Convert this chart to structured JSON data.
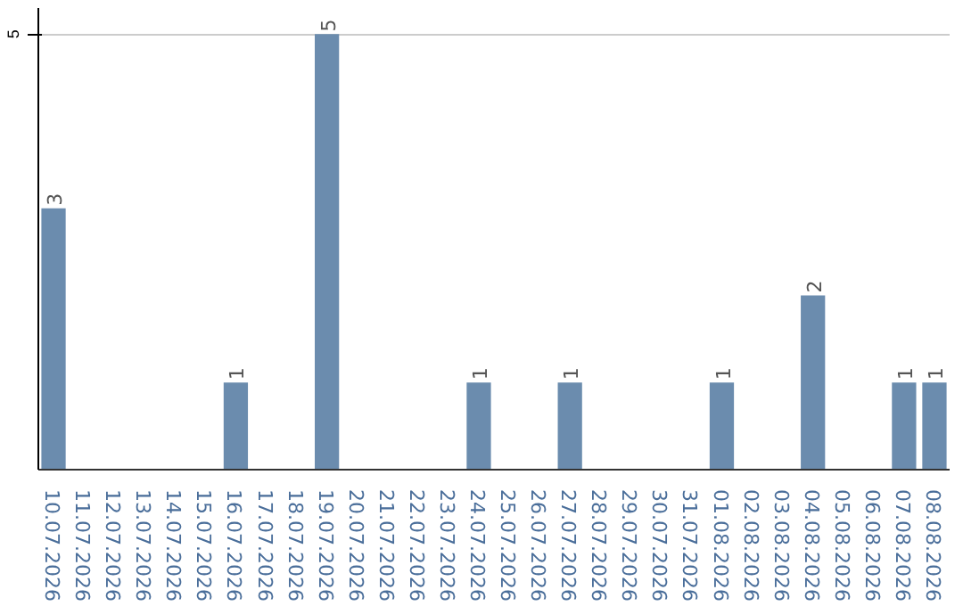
{
  "chart_data": {
    "type": "bar",
    "categories": [
      "10.07.2026",
      "11.07.2026",
      "12.07.2026",
      "13.07.2026",
      "14.07.2026",
      "15.07.2026",
      "16.07.2026",
      "17.07.2026",
      "18.07.2026",
      "19.07.2026",
      "20.07.2026",
      "21.07.2026",
      "22.07.2026",
      "23.07.2026",
      "24.07.2026",
      "25.07.2026",
      "26.07.2026",
      "27.07.2026",
      "28.07.2026",
      "29.07.2026",
      "30.07.2026",
      "31.07.2026",
      "01.08.2026",
      "02.08.2026",
      "03.08.2026",
      "04.08.2026",
      "05.08.2026",
      "06.08.2026",
      "07.08.2026",
      "08.08.2026"
    ],
    "values": [
      3,
      0,
      0,
      0,
      0,
      0,
      1,
      0,
      0,
      5,
      0,
      0,
      0,
      0,
      1,
      0,
      0,
      1,
      0,
      0,
      0,
      0,
      1,
      0,
      0,
      2,
      0,
      0,
      1,
      1
    ],
    "value_labels": [
      "3",
      null,
      null,
      null,
      null,
      null,
      "1",
      null,
      null,
      "5",
      null,
      null,
      null,
      null,
      "1",
      null,
      null,
      "1",
      null,
      null,
      null,
      null,
      "1",
      null,
      null,
      "2",
      null,
      null,
      "1",
      "1"
    ],
    "color": "#6b8cae",
    "ylim": [
      0,
      5.3
    ],
    "yticks": [
      5
    ],
    "grid": "y"
  }
}
